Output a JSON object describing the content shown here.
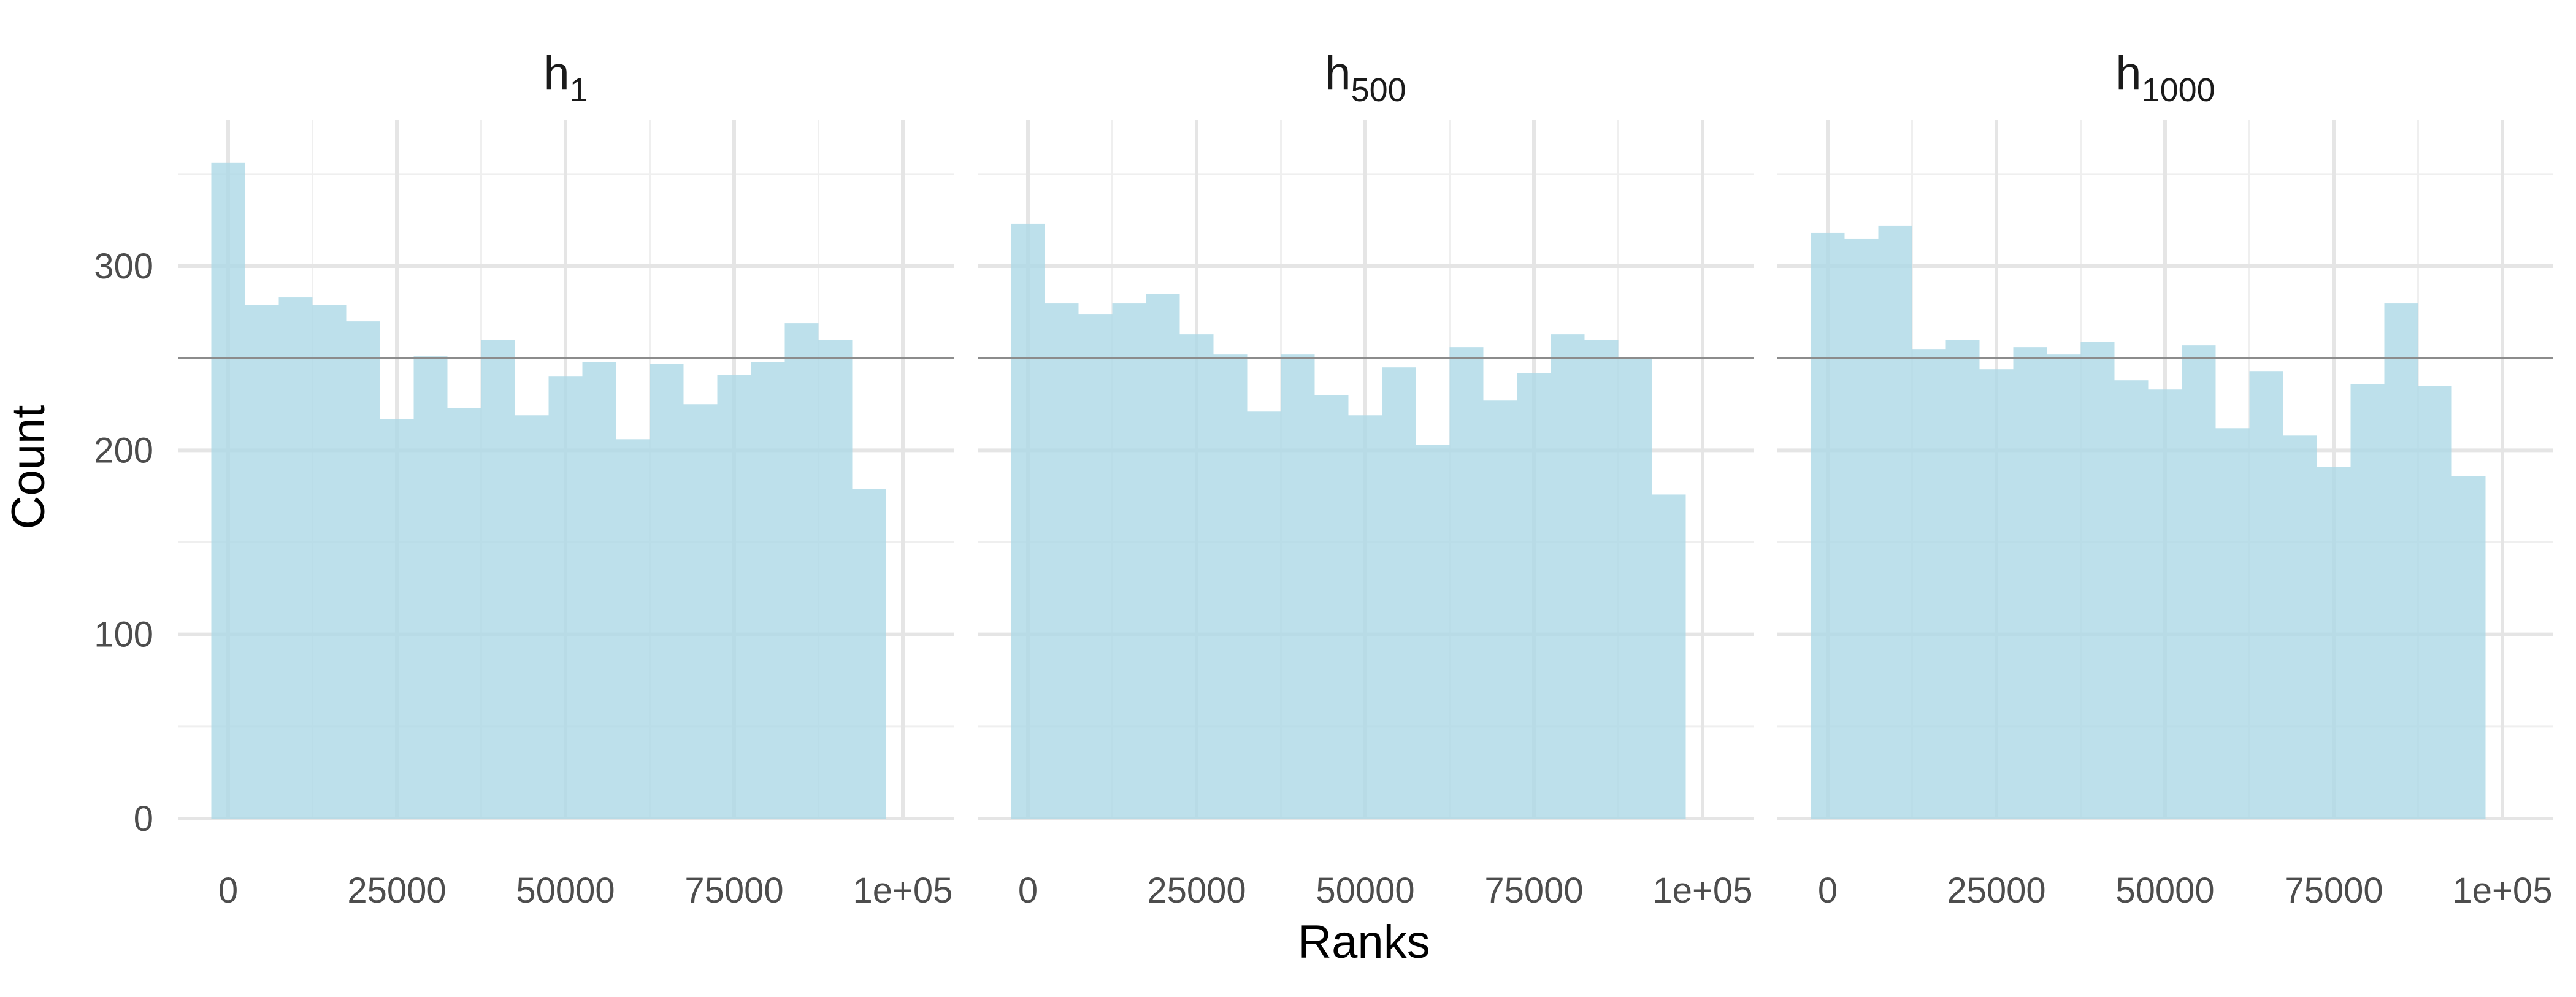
{
  "chart_data": {
    "type": "bar",
    "xlabel": "Ranks",
    "ylabel": "Count",
    "xlim": [
      -5000,
      105000
    ],
    "ylim": [
      0,
      370
    ],
    "x_ticks": [
      "0",
      "25000",
      "50000",
      "75000",
      "1e+05"
    ],
    "x_tick_values": [
      0,
      25000,
      50000,
      75000,
      100000
    ],
    "y_ticks": [
      "0",
      "100",
      "200",
      "300"
    ],
    "y_tick_values": [
      0,
      100,
      200,
      300
    ],
    "reference_line_y": 250,
    "bin_width": 5000,
    "bin_start": -2500,
    "grid": true,
    "bar_color": "#add8e6",
    "reference_line_color": "#8c8c8c",
    "panels": [
      {
        "title_base": "h",
        "title_sub": "1",
        "counts": [
          356,
          279,
          283,
          279,
          270,
          217,
          251,
          223,
          260,
          219,
          240,
          248,
          206,
          247,
          225,
          241,
          248,
          269,
          260,
          179
        ]
      },
      {
        "title_base": "h",
        "title_sub": "500",
        "counts": [
          323,
          280,
          274,
          280,
          285,
          263,
          252,
          221,
          252,
          230,
          219,
          245,
          203,
          256,
          227,
          242,
          263,
          260,
          250,
          176
        ]
      },
      {
        "title_base": "h",
        "title_sub": "1000",
        "counts": [
          318,
          315,
          322,
          255,
          260,
          244,
          256,
          252,
          259,
          238,
          233,
          257,
          212,
          243,
          208,
          191,
          236,
          280,
          235,
          186
        ]
      }
    ]
  }
}
